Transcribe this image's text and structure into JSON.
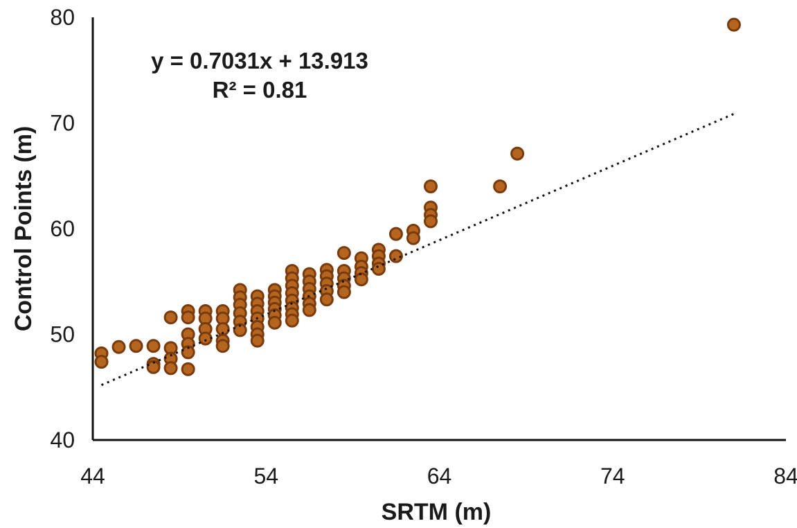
{
  "chart_data": {
    "type": "scatter",
    "xlabel": "SRTM (m)",
    "ylabel": "Control Points (m)",
    "xlim": [
      44,
      84
    ],
    "ylim": [
      40,
      80
    ],
    "xticks": [
      "44",
      "54",
      "64",
      "74",
      "84"
    ],
    "yticks": [
      "40",
      "50",
      "60",
      "70",
      "80"
    ],
    "grid": false,
    "annotation": {
      "equation": "y = 0.7031x + 13.913",
      "r_squared": "R² = 0.81"
    },
    "trendline": {
      "slope": 0.7031,
      "intercept": 13.913,
      "x_range": [
        44.5,
        81
      ],
      "style": "dotted"
    },
    "marker_color": "#b5651d",
    "marker_edge_color": "#7a3b0c",
    "points": [
      [
        44.5,
        48.2
      ],
      [
        44.5,
        47.4
      ],
      [
        45.5,
        48.8
      ],
      [
        46.5,
        48.9
      ],
      [
        47.5,
        48.9
      ],
      [
        47.5,
        47.2
      ],
      [
        47.5,
        46.9
      ],
      [
        48.5,
        51.6
      ],
      [
        48.5,
        48.7
      ],
      [
        48.5,
        47.7
      ],
      [
        48.5,
        46.8
      ],
      [
        49.5,
        52.2
      ],
      [
        49.5,
        51.6
      ],
      [
        49.5,
        50.0
      ],
      [
        49.5,
        49.1
      ],
      [
        49.5,
        48.3
      ],
      [
        49.5,
        46.7
      ],
      [
        50.5,
        52.2
      ],
      [
        50.5,
        51.5
      ],
      [
        50.5,
        50.5
      ],
      [
        50.5,
        49.6
      ],
      [
        51.5,
        52.2
      ],
      [
        51.5,
        51.5
      ],
      [
        51.5,
        50.5
      ],
      [
        51.5,
        49.4
      ],
      [
        51.5,
        48.9
      ],
      [
        52.5,
        54.2
      ],
      [
        52.5,
        53.5
      ],
      [
        52.5,
        52.8
      ],
      [
        52.5,
        52.0
      ],
      [
        52.5,
        51.2
      ],
      [
        52.5,
        50.4
      ],
      [
        53.5,
        53.6
      ],
      [
        53.5,
        52.9
      ],
      [
        53.5,
        52.2
      ],
      [
        53.5,
        51.5
      ],
      [
        53.5,
        50.7
      ],
      [
        53.5,
        50.0
      ],
      [
        53.5,
        49.4
      ],
      [
        54.5,
        54.2
      ],
      [
        54.5,
        53.6
      ],
      [
        54.5,
        53.0
      ],
      [
        54.5,
        52.4
      ],
      [
        54.5,
        51.8
      ],
      [
        54.5,
        51.1
      ],
      [
        55.5,
        56.0
      ],
      [
        55.5,
        55.3
      ],
      [
        55.5,
        54.6
      ],
      [
        55.5,
        53.9
      ],
      [
        55.5,
        53.2
      ],
      [
        55.5,
        52.5
      ],
      [
        55.5,
        51.9
      ],
      [
        55.5,
        51.3
      ],
      [
        56.5,
        55.7
      ],
      [
        56.5,
        55.0
      ],
      [
        56.5,
        54.3
      ],
      [
        56.5,
        53.6
      ],
      [
        56.5,
        52.9
      ],
      [
        56.5,
        52.3
      ],
      [
        57.5,
        56.1
      ],
      [
        57.5,
        55.5
      ],
      [
        57.5,
        54.8
      ],
      [
        57.5,
        54.1
      ],
      [
        57.5,
        53.3
      ],
      [
        58.5,
        57.7
      ],
      [
        58.5,
        56.0
      ],
      [
        58.5,
        55.3
      ],
      [
        58.5,
        54.6
      ],
      [
        58.5,
        54.0
      ],
      [
        59.5,
        57.2
      ],
      [
        59.5,
        56.4
      ],
      [
        59.5,
        55.8
      ],
      [
        59.5,
        55.2
      ],
      [
        60.5,
        58.0
      ],
      [
        60.5,
        57.4
      ],
      [
        60.5,
        56.7
      ],
      [
        60.5,
        56.2
      ],
      [
        61.5,
        59.5
      ],
      [
        61.5,
        57.4
      ],
      [
        62.5,
        59.8
      ],
      [
        62.5,
        59.1
      ],
      [
        63.5,
        64.0
      ],
      [
        63.5,
        62.0
      ],
      [
        63.5,
        61.3
      ],
      [
        63.5,
        60.7
      ],
      [
        67.5,
        64.0
      ],
      [
        68.5,
        67.1
      ],
      [
        81,
        79.3
      ]
    ]
  }
}
